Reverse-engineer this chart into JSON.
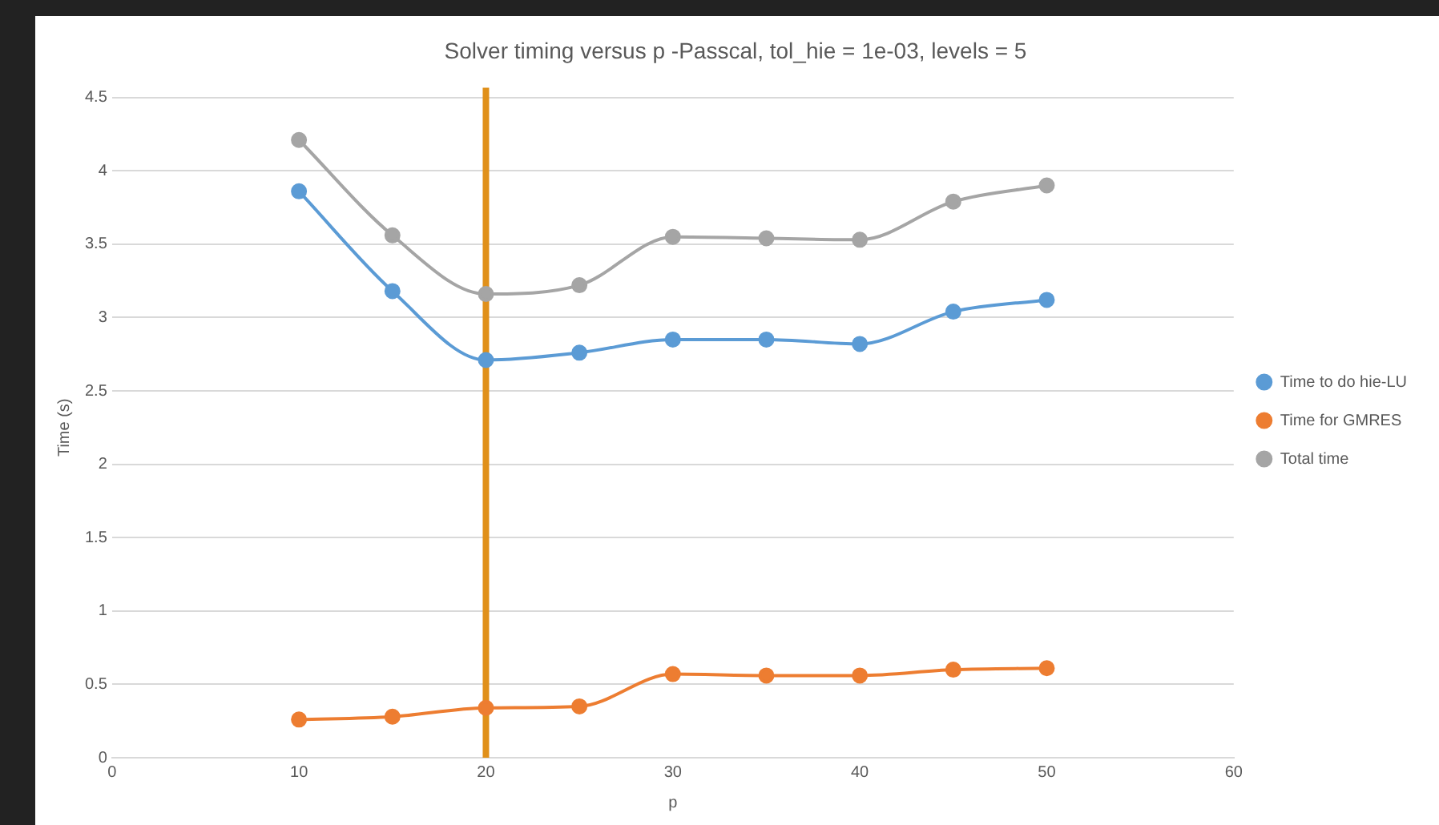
{
  "chart_data": {
    "type": "line",
    "title": "Solver timing versus p -Passcal, tol_hie = 1e-03, levels = 5",
    "xlabel": "p",
    "ylabel": "Time (s)",
    "x": [
      10,
      15,
      20,
      25,
      30,
      35,
      40,
      45,
      50
    ],
    "series": [
      {
        "name": "Time to do hie-LU",
        "color": "#5b9bd5",
        "values": [
          3.86,
          3.18,
          2.71,
          2.76,
          2.85,
          2.85,
          2.82,
          3.04,
          3.12
        ]
      },
      {
        "name": "Time for GMRES",
        "color": "#ed7d31",
        "values": [
          0.26,
          0.28,
          0.34,
          0.35,
          0.57,
          0.56,
          0.56,
          0.6,
          0.61
        ]
      },
      {
        "name": "Total time",
        "color": "#a5a5a5",
        "values": [
          4.21,
          3.56,
          3.16,
          3.22,
          3.55,
          3.54,
          3.53,
          3.79,
          3.9
        ]
      }
    ],
    "xlim": [
      0,
      60
    ],
    "xticks": [
      0,
      10,
      20,
      30,
      40,
      50,
      60
    ],
    "ylim": [
      0,
      4.5
    ],
    "yticks": [
      0,
      0.5,
      1,
      1.5,
      2,
      2.5,
      3,
      3.5,
      4,
      4.5
    ],
    "ref_lines": [
      {
        "axis": "x",
        "value": 20,
        "color": "#e0901a"
      }
    ],
    "grid": "y",
    "legend": "right",
    "marker": "circle",
    "line_style": "solid"
  }
}
